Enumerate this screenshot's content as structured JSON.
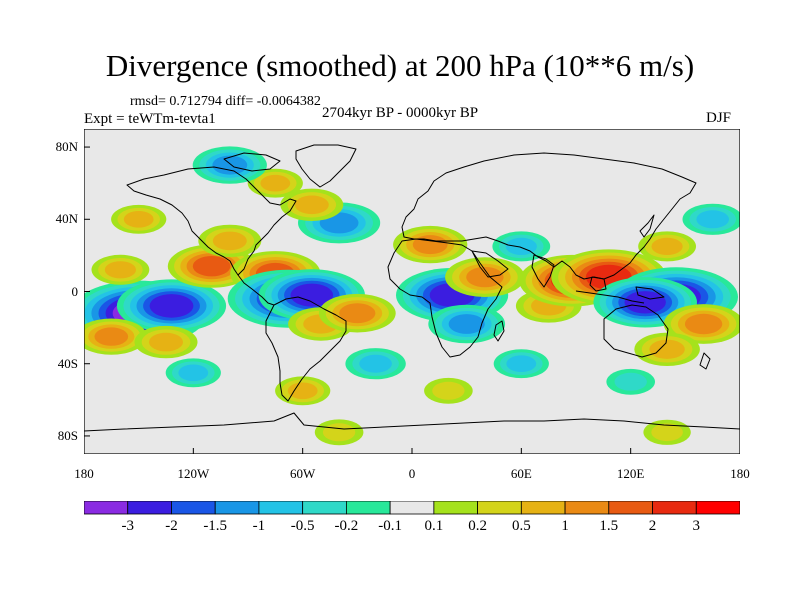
{
  "title": "Divergence (smoothed) at 200 hPa (10**6 m/s)",
  "stats": "rmsd= 0.712794  diff= -0.0064382",
  "experiment": "Expt = teWTm-tevta1",
  "period": "2704kyr BP - 0000kyr BP",
  "season": "DJF",
  "chart_data": {
    "type": "heatmap",
    "projection": "equirectangular",
    "xlim": [
      -180,
      180
    ],
    "ylim": [
      -90,
      90
    ],
    "y_ticks": [
      {
        "label": "80N",
        "value": 80
      },
      {
        "label": "40N",
        "value": 40
      },
      {
        "label": "0",
        "value": 0
      },
      {
        "label": "40S",
        "value": -40
      },
      {
        "label": "80S",
        "value": -80
      }
    ],
    "x_ticks": [
      {
        "label": "180",
        "value": -180
      },
      {
        "label": "120W",
        "value": -120
      },
      {
        "label": "60W",
        "value": -60
      },
      {
        "label": "0",
        "value": 0
      },
      {
        "label": "60E",
        "value": 60
      },
      {
        "label": "120E",
        "value": 120
      },
      {
        "label": "180",
        "value": 180
      }
    ],
    "colorbar": {
      "labels": [
        "-3",
        "-2",
        "-1.5",
        "-1",
        "-0.5",
        "-0.2",
        "-0.1",
        "0.1",
        "0.2",
        "0.5",
        "1",
        "1.5",
        "2",
        "3"
      ],
      "colors": [
        "#8a2be2",
        "#3b1de0",
        "#1a56e6",
        "#1996e6",
        "#23c3e6",
        "#2fd9c8",
        "#28e89a",
        "#e8e8e8",
        "#a5e21c",
        "#d4d41a",
        "#e6b214",
        "#ea8a14",
        "#e85a12",
        "#e82a10",
        "#ff0000"
      ]
    },
    "features": [
      {
        "lon": -150,
        "lat": -12,
        "value": -3.1
      },
      {
        "lon": -132,
        "lat": -8,
        "value": -2.2
      },
      {
        "lon": -165,
        "lat": -25,
        "value": 1.0
      },
      {
        "lon": -135,
        "lat": -28,
        "value": 0.8
      },
      {
        "lon": -160,
        "lat": 12,
        "value": 0.6
      },
      {
        "lon": -110,
        "lat": 14,
        "value": 1.5
      },
      {
        "lon": -75,
        "lat": 10,
        "value": 1.6
      },
      {
        "lon": -100,
        "lat": 28,
        "value": 0.8
      },
      {
        "lon": -68,
        "lat": -4,
        "value": -2.6
      },
      {
        "lon": -55,
        "lat": -2,
        "value": -2.1
      },
      {
        "lon": -50,
        "lat": -18,
        "value": 0.9
      },
      {
        "lon": -30,
        "lat": -12,
        "value": 1.2
      },
      {
        "lon": -40,
        "lat": 38,
        "value": -1.4
      },
      {
        "lon": -55,
        "lat": 48,
        "value": 0.8
      },
      {
        "lon": -75,
        "lat": 60,
        "value": 0.5
      },
      {
        "lon": -100,
        "lat": 70,
        "value": -1.1
      },
      {
        "lon": 22,
        "lat": -2,
        "value": -2.3
      },
      {
        "lon": 30,
        "lat": -18,
        "value": -1.2
      },
      {
        "lon": 10,
        "lat": 26,
        "value": 1.1
      },
      {
        "lon": 40,
        "lat": 8,
        "value": 1.3
      },
      {
        "lon": 75,
        "lat": -8,
        "value": 0.9
      },
      {
        "lon": 60,
        "lat": 25,
        "value": -0.6
      },
      {
        "lon": 88,
        "lat": 6,
        "value": 2.1
      },
      {
        "lon": 108,
        "lat": 8,
        "value": 2.4
      },
      {
        "lon": 145,
        "lat": -3,
        "value": -2.7
      },
      {
        "lon": 128,
        "lat": -6,
        "value": -2.0
      },
      {
        "lon": 160,
        "lat": -18,
        "value": 1.3
      },
      {
        "lon": 140,
        "lat": -32,
        "value": 0.9
      },
      {
        "lon": 140,
        "lat": 25,
        "value": 0.6
      },
      {
        "lon": 165,
        "lat": 40,
        "value": -0.7
      },
      {
        "lon": -150,
        "lat": 40,
        "value": 0.5
      },
      {
        "lon": -120,
        "lat": -45,
        "value": -0.5
      },
      {
        "lon": -20,
        "lat": -40,
        "value": -0.7
      },
      {
        "lon": 60,
        "lat": -40,
        "value": -0.5
      },
      {
        "lon": 120,
        "lat": -50,
        "value": -0.4
      },
      {
        "lon": -60,
        "lat": -55,
        "value": 0.5
      },
      {
        "lon": 20,
        "lat": -55,
        "value": 0.4
      },
      {
        "lon": -40,
        "lat": -78,
        "value": 0.4
      },
      {
        "lon": 140,
        "lat": -78,
        "value": 0.35
      }
    ]
  }
}
